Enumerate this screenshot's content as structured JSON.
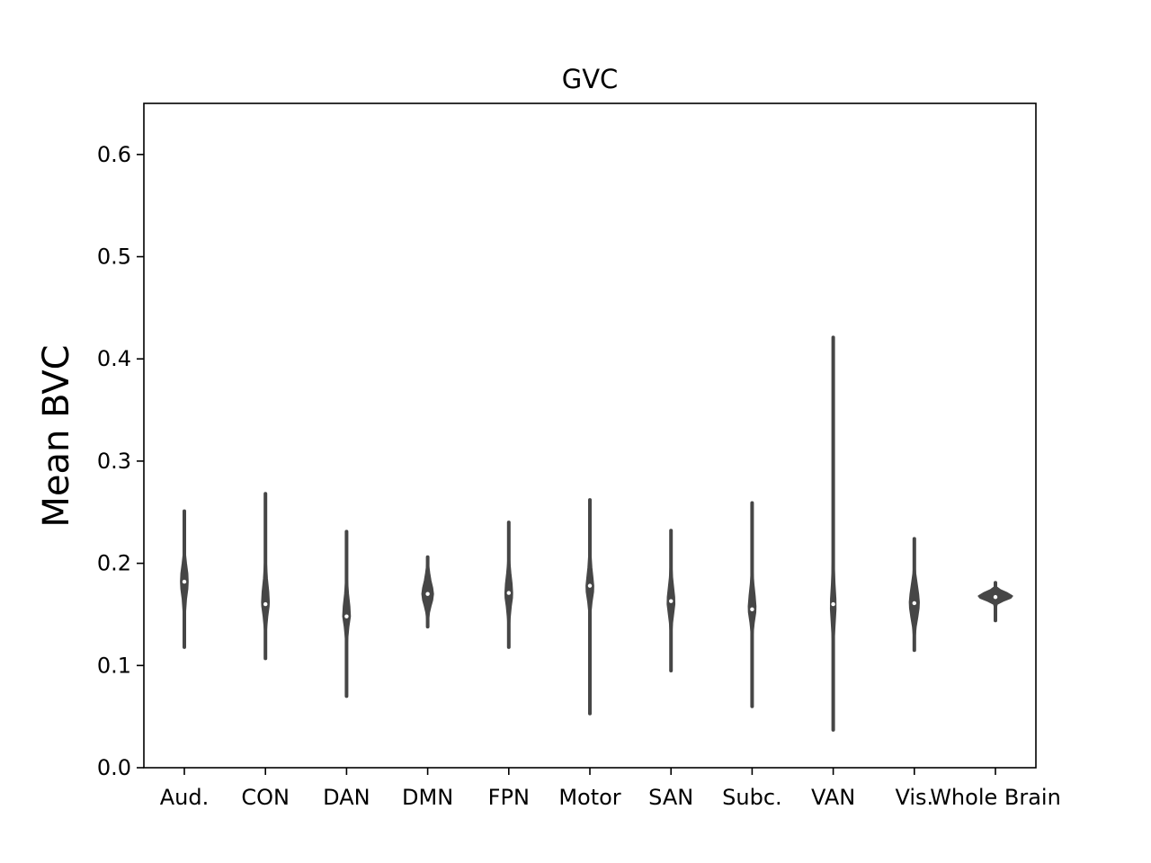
{
  "chart_data": {
    "type": "violin",
    "title": "GVC",
    "xlabel": "",
    "ylabel": "Mean BVC",
    "ylim": [
      0.0,
      0.65
    ],
    "yticks": [
      "0.0",
      "0.1",
      "0.2",
      "0.3",
      "0.4",
      "0.5",
      "0.6"
    ],
    "grid": false,
    "color": "#464646",
    "categories": [
      "Aud.",
      "CON",
      "DAN",
      "DMN",
      "FPN",
      "Motor",
      "SAN",
      "Subc.",
      "VAN",
      "Vis.",
      "Whole Brain"
    ],
    "series": [
      {
        "values_min": 0.118,
        "values_max": 0.251,
        "median": 0.182,
        "peak_half_width": 0.09,
        "profile": [
          [
            0.118,
            0.02
          ],
          [
            0.13,
            0.05
          ],
          [
            0.15,
            0.25
          ],
          [
            0.165,
            0.55
          ],
          [
            0.175,
            0.9
          ],
          [
            0.182,
            1.0
          ],
          [
            0.19,
            0.9
          ],
          [
            0.2,
            0.55
          ],
          [
            0.21,
            0.25
          ],
          [
            0.22,
            0.08
          ],
          [
            0.235,
            0.04
          ],
          [
            0.251,
            0.02
          ]
        ]
      },
      {
        "values_min": 0.107,
        "values_max": 0.268,
        "median": 0.16,
        "peak_half_width": 0.09,
        "profile": [
          [
            0.107,
            0.02
          ],
          [
            0.12,
            0.08
          ],
          [
            0.135,
            0.25
          ],
          [
            0.148,
            0.6
          ],
          [
            0.158,
            0.95
          ],
          [
            0.162,
            1.0
          ],
          [
            0.172,
            0.85
          ],
          [
            0.185,
            0.5
          ],
          [
            0.2,
            0.25
          ],
          [
            0.215,
            0.08
          ],
          [
            0.235,
            0.04
          ],
          [
            0.268,
            0.02
          ]
        ]
      },
      {
        "values_min": 0.07,
        "values_max": 0.231,
        "median": 0.148,
        "peak_half_width": 0.09,
        "profile": [
          [
            0.07,
            0.02
          ],
          [
            0.09,
            0.04
          ],
          [
            0.11,
            0.08
          ],
          [
            0.125,
            0.25
          ],
          [
            0.138,
            0.6
          ],
          [
            0.148,
            1.0
          ],
          [
            0.158,
            0.85
          ],
          [
            0.17,
            0.5
          ],
          [
            0.185,
            0.2
          ],
          [
            0.2,
            0.08
          ],
          [
            0.215,
            0.04
          ],
          [
            0.231,
            0.02
          ]
        ]
      },
      {
        "values_min": 0.138,
        "values_max": 0.206,
        "median": 0.17,
        "peak_half_width": 0.14,
        "profile": [
          [
            0.138,
            0.04
          ],
          [
            0.145,
            0.15
          ],
          [
            0.152,
            0.3
          ],
          [
            0.158,
            0.55
          ],
          [
            0.164,
            0.85
          ],
          [
            0.17,
            1.0
          ],
          [
            0.176,
            0.85
          ],
          [
            0.183,
            0.55
          ],
          [
            0.19,
            0.35
          ],
          [
            0.196,
            0.2
          ],
          [
            0.202,
            0.1
          ],
          [
            0.206,
            0.04
          ]
        ]
      },
      {
        "values_min": 0.118,
        "values_max": 0.24,
        "median": 0.171,
        "peak_half_width": 0.09,
        "profile": [
          [
            0.118,
            0.02
          ],
          [
            0.13,
            0.08
          ],
          [
            0.145,
            0.3
          ],
          [
            0.158,
            0.65
          ],
          [
            0.166,
            0.95
          ],
          [
            0.171,
            1.0
          ],
          [
            0.18,
            0.85
          ],
          [
            0.19,
            0.55
          ],
          [
            0.2,
            0.3
          ],
          [
            0.212,
            0.1
          ],
          [
            0.225,
            0.04
          ],
          [
            0.24,
            0.02
          ]
        ]
      },
      {
        "values_min": 0.053,
        "values_max": 0.262,
        "median": 0.178,
        "peak_half_width": 0.09,
        "profile": [
          [
            0.053,
            0.02
          ],
          [
            0.09,
            0.03
          ],
          [
            0.13,
            0.04
          ],
          [
            0.15,
            0.2
          ],
          [
            0.162,
            0.55
          ],
          [
            0.172,
            0.95
          ],
          [
            0.178,
            1.0
          ],
          [
            0.186,
            0.8
          ],
          [
            0.196,
            0.5
          ],
          [
            0.21,
            0.25
          ],
          [
            0.225,
            0.08
          ],
          [
            0.245,
            0.04
          ],
          [
            0.262,
            0.02
          ]
        ]
      },
      {
        "values_min": 0.095,
        "values_max": 0.232,
        "median": 0.163,
        "peak_half_width": 0.09,
        "profile": [
          [
            0.095,
            0.02
          ],
          [
            0.115,
            0.06
          ],
          [
            0.13,
            0.15
          ],
          [
            0.142,
            0.4
          ],
          [
            0.152,
            0.75
          ],
          [
            0.16,
            1.0
          ],
          [
            0.167,
            0.95
          ],
          [
            0.176,
            0.7
          ],
          [
            0.186,
            0.4
          ],
          [
            0.198,
            0.2
          ],
          [
            0.212,
            0.06
          ],
          [
            0.232,
            0.02
          ]
        ]
      },
      {
        "values_min": 0.06,
        "values_max": 0.259,
        "median": 0.155,
        "peak_half_width": 0.09,
        "profile": [
          [
            0.06,
            0.02
          ],
          [
            0.09,
            0.03
          ],
          [
            0.115,
            0.05
          ],
          [
            0.13,
            0.2
          ],
          [
            0.142,
            0.55
          ],
          [
            0.152,
            0.95
          ],
          [
            0.158,
            1.0
          ],
          [
            0.168,
            0.8
          ],
          [
            0.18,
            0.45
          ],
          [
            0.192,
            0.2
          ],
          [
            0.21,
            0.06
          ],
          [
            0.235,
            0.03
          ],
          [
            0.259,
            0.02
          ]
        ]
      },
      {
        "values_min": 0.037,
        "values_max": 0.421,
        "median": 0.16,
        "peak_half_width": 0.065,
        "profile": [
          [
            0.037,
            0.02
          ],
          [
            0.07,
            0.03
          ],
          [
            0.1,
            0.08
          ],
          [
            0.125,
            0.3
          ],
          [
            0.14,
            0.65
          ],
          [
            0.155,
            1.0
          ],
          [
            0.165,
            0.95
          ],
          [
            0.18,
            0.6
          ],
          [
            0.2,
            0.3
          ],
          [
            0.22,
            0.1
          ],
          [
            0.25,
            0.04
          ],
          [
            0.3,
            0.025
          ],
          [
            0.421,
            0.02
          ]
        ]
      },
      {
        "values_min": 0.115,
        "values_max": 0.224,
        "median": 0.161,
        "peak_half_width": 0.12,
        "profile": [
          [
            0.115,
            0.02
          ],
          [
            0.125,
            0.1
          ],
          [
            0.138,
            0.35
          ],
          [
            0.148,
            0.7
          ],
          [
            0.156,
            0.95
          ],
          [
            0.162,
            1.0
          ],
          [
            0.17,
            0.85
          ],
          [
            0.18,
            0.55
          ],
          [
            0.19,
            0.25
          ],
          [
            0.2,
            0.08
          ],
          [
            0.212,
            0.04
          ],
          [
            0.224,
            0.02
          ]
        ]
      },
      {
        "values_min": 0.144,
        "values_max": 0.181,
        "median": 0.167,
        "peak_half_width": 0.42,
        "profile": [
          [
            0.144,
            0.015
          ],
          [
            0.155,
            0.02
          ],
          [
            0.16,
            0.1
          ],
          [
            0.163,
            0.45
          ],
          [
            0.166,
            0.9
          ],
          [
            0.168,
            1.0
          ],
          [
            0.171,
            0.7
          ],
          [
            0.174,
            0.3
          ],
          [
            0.177,
            0.06
          ],
          [
            0.181,
            0.015
          ]
        ]
      }
    ]
  }
}
